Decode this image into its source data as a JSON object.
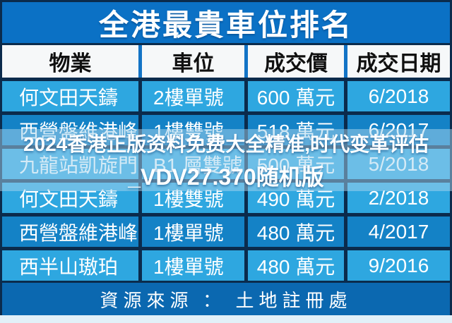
{
  "title": "全港最貴車位排名",
  "chart_data": {
    "type": "table",
    "title": "全港最貴車位排名",
    "columns": [
      "物業",
      "車位",
      "成交價",
      "成交日期"
    ],
    "rows": [
      {
        "property": "何文田天鑄",
        "space": "2樓單號",
        "price": "600 萬元",
        "date": "6/2018",
        "tone": "light"
      },
      {
        "property": "西營盤維港峰",
        "space": "1樓雙號",
        "price": "518 萬元",
        "date": "6/2017",
        "tone": "dark"
      },
      {
        "property": "九龍站凱旋門",
        "space": "B1 層雙號",
        "price": "500 萬元",
        "date": "5/2018",
        "tone": "light"
      },
      {
        "property": "何文田天鑄",
        "space": "1樓雙號",
        "price": "490 萬元",
        "date": "2/2018",
        "tone": "light"
      },
      {
        "property": "西營盤維港峰",
        "space": "1樓單號",
        "price": "480 萬元",
        "date": "4/2017",
        "tone": "dark"
      },
      {
        "property": "西半山璈珀",
        "space": "1樓單號",
        "price": "480 萬元",
        "date": "9/2016",
        "tone": "light"
      }
    ],
    "source": "資源來源 ： 土地註冊處"
  },
  "watermark": {
    "line1": "2024香港正版资料免费大全精准,时代变革评估",
    "line2": "_VDV27.370随机版"
  },
  "footer": {
    "source": "資源來源 ： 土地註冊處"
  },
  "colors": {
    "title_bar": "#0B71C5",
    "header_bg": "#F6F8F9",
    "row_light": "#2EA7E0",
    "row_dark": "#1482C6",
    "separator": "#0B2B4C",
    "footer_bg": "#0B68B0",
    "bottom_strip": "#E2F0F8",
    "text_light": "#FFFFFF",
    "text_dark": "#101010"
  }
}
